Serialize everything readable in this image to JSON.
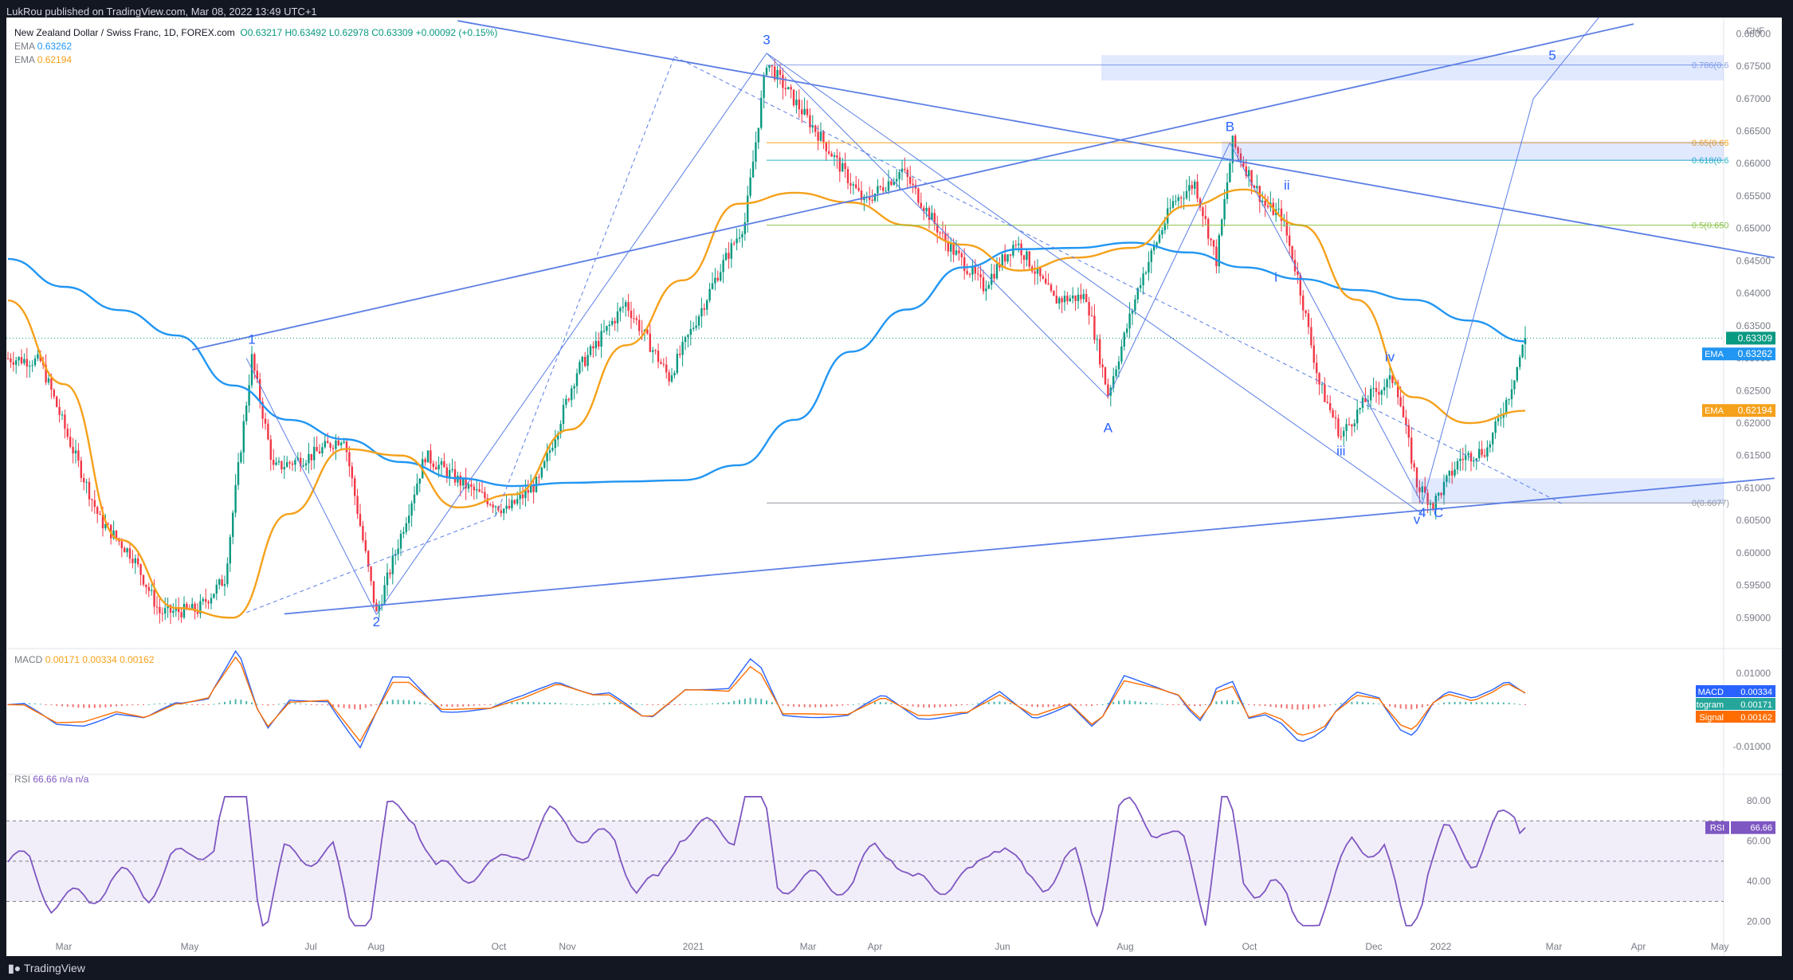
{
  "header": {
    "publisher": "LukRou published on TradingView.com, Mar 08, 2022 13:49 UTC+1"
  },
  "legend": {
    "symbol": "New Zealand Dollar / Swiss Franc, 1D, FOREX.com",
    "ohlc": "O0.63217 H0.63492 L0.62978 C0.63309 +0.00092 (+0.15%)",
    "ema1_label": "EMA",
    "ema1_value": "0.63262",
    "ema2_label": "EMA",
    "ema2_value": "0.62194",
    "macd_label": "MACD",
    "macd_values": "0.00171  0.00334  0.00162",
    "rsi_label": "RSI",
    "rsi_values": "66.66  n/a  n/a"
  },
  "currency_badge": "CHF",
  "footer": {
    "brand": "TradingView"
  },
  "colors": {
    "ema200": "#2196f3",
    "ema50": "#f5a11b",
    "up": "#089981",
    "down": "#f23645",
    "drawing": "#5b7ee5",
    "rsi": "#7e57c2",
    "fib_green": "#8bc34a",
    "fib_orange": "#f5a11b"
  },
  "chart_data": {
    "type": "candlestick",
    "x_axis_labels": [
      "Mar",
      "May",
      "Jul",
      "Aug",
      "Oct",
      "Nov",
      "2021",
      "Mar",
      "Apr",
      "Jun",
      "Aug",
      "Oct",
      "Dec",
      "2022",
      "Mar",
      "Apr",
      "May"
    ],
    "price_axis": {
      "ylim": [
        0.5855,
        0.6825
      ],
      "ticks": [
        "0.59000",
        "0.59500",
        "0.60000",
        "0.60500",
        "0.61000",
        "0.61500",
        "0.62000",
        "0.62500",
        "0.63000",
        "0.63500",
        "0.64000",
        "0.64500",
        "0.65000",
        "0.65500",
        "0.66000",
        "0.66500",
        "0.67000",
        "0.67500",
        "0.68000"
      ]
    },
    "last_price": "0.63309",
    "price_labels": [
      {
        "text": "0.63309",
        "value": 0.63309,
        "color": "#089981",
        "name": ""
      },
      {
        "text": "0.63262",
        "value": 0.63262,
        "color": "#2196f3",
        "name": "EMA"
      },
      {
        "text": "0.62194",
        "value": 0.62194,
        "color": "#f5a11b",
        "name": "EMA"
      }
    ],
    "fib_levels": [
      {
        "label": "0.786(0.6",
        "value": 0.6752,
        "color": "#8fa6e6"
      },
      {
        "label": "0.65(0.66",
        "value": 0.6632,
        "color": "#f5a11b"
      },
      {
        "label": "0.618(0.6",
        "value": 0.6605,
        "color": "#29b6c8"
      },
      {
        "label": "0.5(0.650",
        "value": 0.6505,
        "color": "#8bc34a"
      },
      {
        "label": "0(0.6077)",
        "value": 0.6077,
        "color": "#9598a1"
      }
    ],
    "wave_labels": [
      {
        "text": "1",
        "i": 90,
        "p": 0.6322
      },
      {
        "text": "2",
        "i": 136,
        "p": 0.5887
      },
      {
        "text": "3",
        "i": 280,
        "p": 0.6784
      },
      {
        "text": "A",
        "i": 406,
        "p": 0.6186
      },
      {
        "text": "B",
        "i": 451,
        "p": 0.665
      },
      {
        "text": "ii",
        "i": 472,
        "p": 0.656
      },
      {
        "text": "i",
        "i": 468,
        "p": 0.6418
      },
      {
        "text": "iii",
        "i": 492,
        "p": 0.615
      },
      {
        "text": "iv",
        "i": 510,
        "p": 0.6295
      },
      {
        "text": "4",
        "i": 522,
        "p": 0.6055
      },
      {
        "text": "v",
        "i": 520,
        "p": 0.6045
      },
      {
        "text": "C",
        "i": 528,
        "p": 0.6055
      },
      {
        "text": "5",
        "i": 570,
        "p": 0.676
      }
    ],
    "series": [
      {
        "name": "EMA",
        "values": [
          0.6453,
          0.641,
          0.6374,
          0.6335,
          0.6258,
          0.6205,
          0.6175,
          0.614,
          0.6115,
          0.6103,
          0.6108,
          0.611,
          0.6112,
          0.6135,
          0.6205,
          0.631,
          0.6375,
          0.644,
          0.6468,
          0.647,
          0.6478,
          0.6463,
          0.644,
          0.6422,
          0.6405,
          0.639,
          0.6358,
          0.6326
        ]
      },
      {
        "name": "EMA",
        "values": [
          0.6389,
          0.626,
          0.602,
          0.5915,
          0.59,
          0.606,
          0.616,
          0.615,
          0.607,
          0.609,
          0.619,
          0.632,
          0.642,
          0.6538,
          0.6555,
          0.654,
          0.6505,
          0.6475,
          0.6435,
          0.6455,
          0.647,
          0.6535,
          0.656,
          0.6505,
          0.639,
          0.624,
          0.62,
          0.6219
        ]
      }
    ],
    "macd": {
      "ticks": [
        "0.01000",
        "-0.01000"
      ],
      "macd": "0.00334",
      "histogram": "0.00171",
      "signal": "0.00162",
      "labels": [
        "MACD",
        "Histogram",
        "Signal"
      ]
    },
    "rsi": {
      "ticks": [
        "80.00",
        "60.00",
        "40.00",
        "20.00"
      ],
      "band": [
        30,
        70
      ],
      "value": "66.66",
      "label": "RSI"
    }
  }
}
